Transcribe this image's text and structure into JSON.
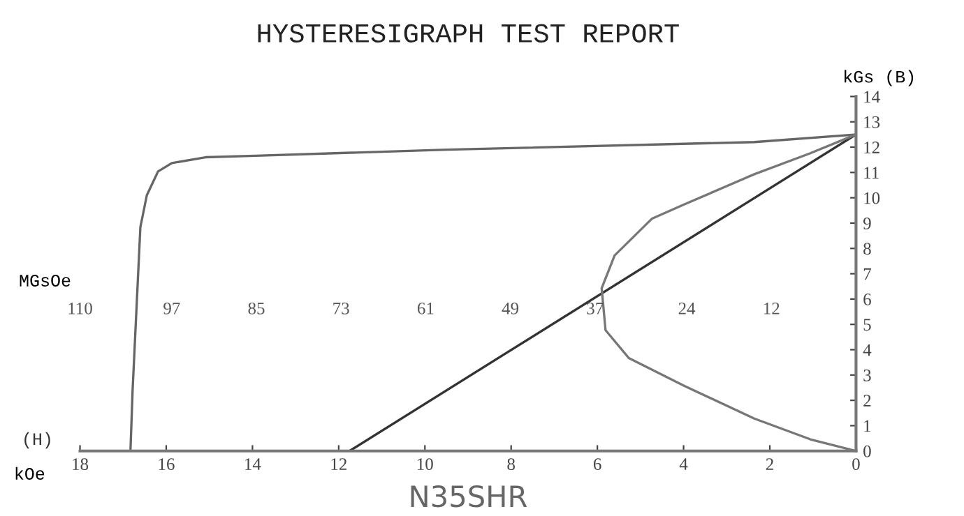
{
  "chart_data": {
    "type": "line",
    "title": "HYSTERESIGRAPH TEST REPORT",
    "xlabel": "kOe",
    "ylabel": "kGs (B)",
    "x2label": "MGsOe",
    "annotations": [
      "(H)",
      "N35SHR"
    ],
    "xlim": [
      18,
      0
    ],
    "xticks": [
      18,
      16,
      14,
      12,
      10,
      8,
      6,
      4,
      2,
      0
    ],
    "ylim": [
      0,
      14
    ],
    "yticks": [
      0,
      1,
      2,
      3,
      4,
      5,
      6,
      7,
      8,
      9,
      10,
      11,
      12,
      13,
      14
    ],
    "x2lim": [
      110,
      0
    ],
    "x2ticks": [
      110,
      97,
      85,
      73,
      61,
      49,
      37,
      24,
      12
    ],
    "grid": false,
    "legend": false,
    "marker": "none",
    "line_style": "solid",
    "series": [
      {
        "color": "#666666",
        "x": [
          16.83,
          16.78,
          16.6,
          16.45,
          16.19,
          15.87,
          15.09,
          13.93,
          9.48,
          2.36,
          0
        ],
        "values": [
          0,
          2.4,
          8.84,
          10.1,
          11.04,
          11.37,
          11.6,
          11.66,
          11.9,
          12.2,
          12.5
        ]
      },
      {
        "color": "#333333",
        "x": [
          11.75,
          0
        ],
        "values": [
          0,
          12.5
        ]
      },
      {
        "color": "#777777",
        "x": [
          0,
          1.06,
          2.36,
          3.98,
          4.73,
          5.6,
          5.9,
          5.81,
          5.27,
          3.98,
          2.36,
          1.06,
          0
        ],
        "values": [
          12.5,
          11.76,
          10.93,
          9.74,
          9.18,
          7.72,
          6.43,
          4.77,
          3.67,
          2.57,
          1.28,
          0.46,
          0
        ]
      }
    ]
  }
}
